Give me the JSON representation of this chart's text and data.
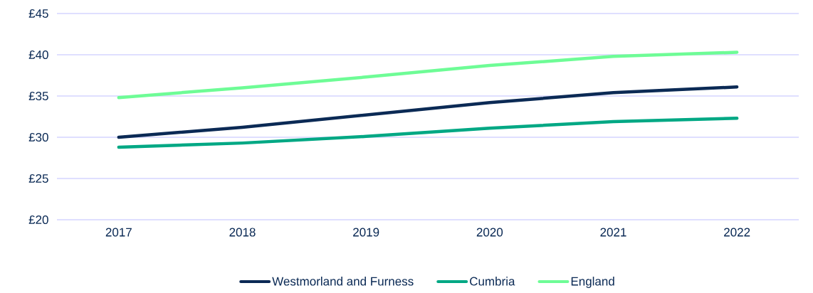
{
  "chart_data": {
    "type": "line",
    "categories": [
      "2017",
      "2018",
      "2019",
      "2020",
      "2021",
      "2022"
    ],
    "series": [
      {
        "name": "Westmorland and Furness",
        "color": "#0b2a55",
        "values": [
          30.0,
          31.2,
          32.7,
          34.2,
          35.4,
          36.1
        ]
      },
      {
        "name": "Cumbria",
        "color": "#00a884",
        "values": [
          28.8,
          29.3,
          30.1,
          31.1,
          31.9,
          32.3
        ]
      },
      {
        "name": "England",
        "color": "#6efc96",
        "values": [
          34.8,
          36.0,
          37.3,
          38.7,
          39.8,
          40.3
        ]
      }
    ],
    "ylim": [
      20,
      45
    ],
    "yticks": [
      {
        "value": 20,
        "label": "£20"
      },
      {
        "value": 25,
        "label": "£25"
      },
      {
        "value": 30,
        "label": "£30"
      },
      {
        "value": 35,
        "label": "£35"
      },
      {
        "value": 40,
        "label": "£40"
      },
      {
        "value": 45,
        "label": "£45"
      }
    ],
    "grid": "y",
    "legend": "bottom",
    "marker": "none",
    "line_style": "solid"
  }
}
